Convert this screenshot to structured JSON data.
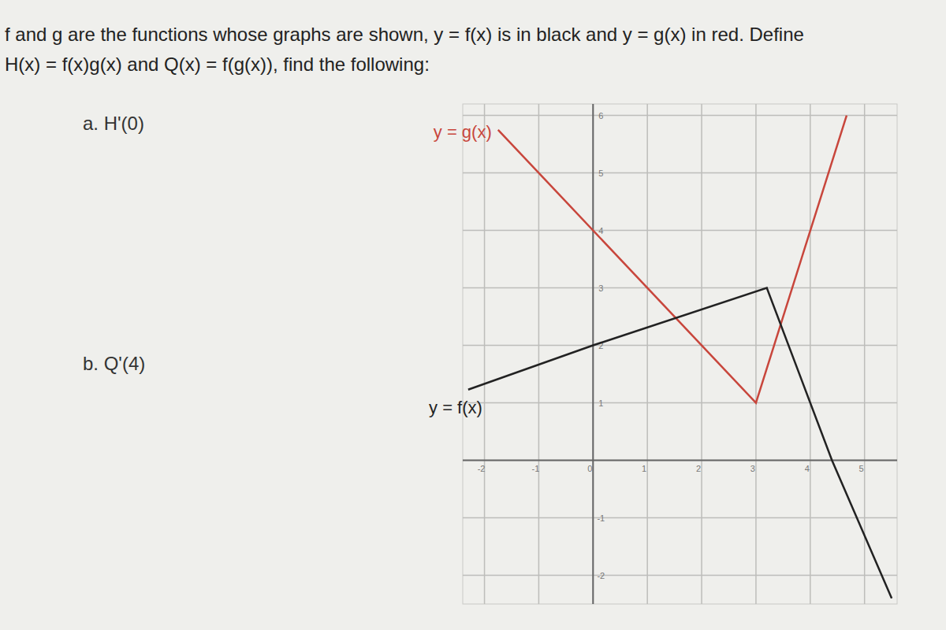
{
  "chart_data": {
    "type": "line",
    "title": "f and g are the functions whose graphs are shown, y = f(x) is in black and y = g(x) in red. Define",
    "subtitle": "H(x) = f(x)g(x) and Q(x) = f(g(x)), find the following:",
    "annotations": [
      "a.  H'(0)",
      "b.  Q'(4)"
    ],
    "series": [
      {
        "name": "y = g(x)",
        "color": "#c8463c",
        "x": [
          -1.75,
          3,
          4.67
        ],
        "values": [
          5.75,
          1,
          6
        ]
      },
      {
        "name": "y = f(x)",
        "color": "#222222",
        "x": [
          -2.3,
          0,
          3.2,
          4.4,
          5.5
        ],
        "values": [
          1.23,
          2,
          3,
          0,
          -2.4
        ]
      }
    ],
    "xlim": [
      -2.4,
      5.6
    ],
    "ylim": [
      -2.5,
      6.2
    ],
    "xticks": [
      -2,
      -1,
      0,
      1,
      2,
      3,
      4,
      5
    ],
    "yticks": [
      -2,
      -1,
      0,
      1,
      2,
      3,
      4,
      5,
      6
    ],
    "grid": true
  }
}
